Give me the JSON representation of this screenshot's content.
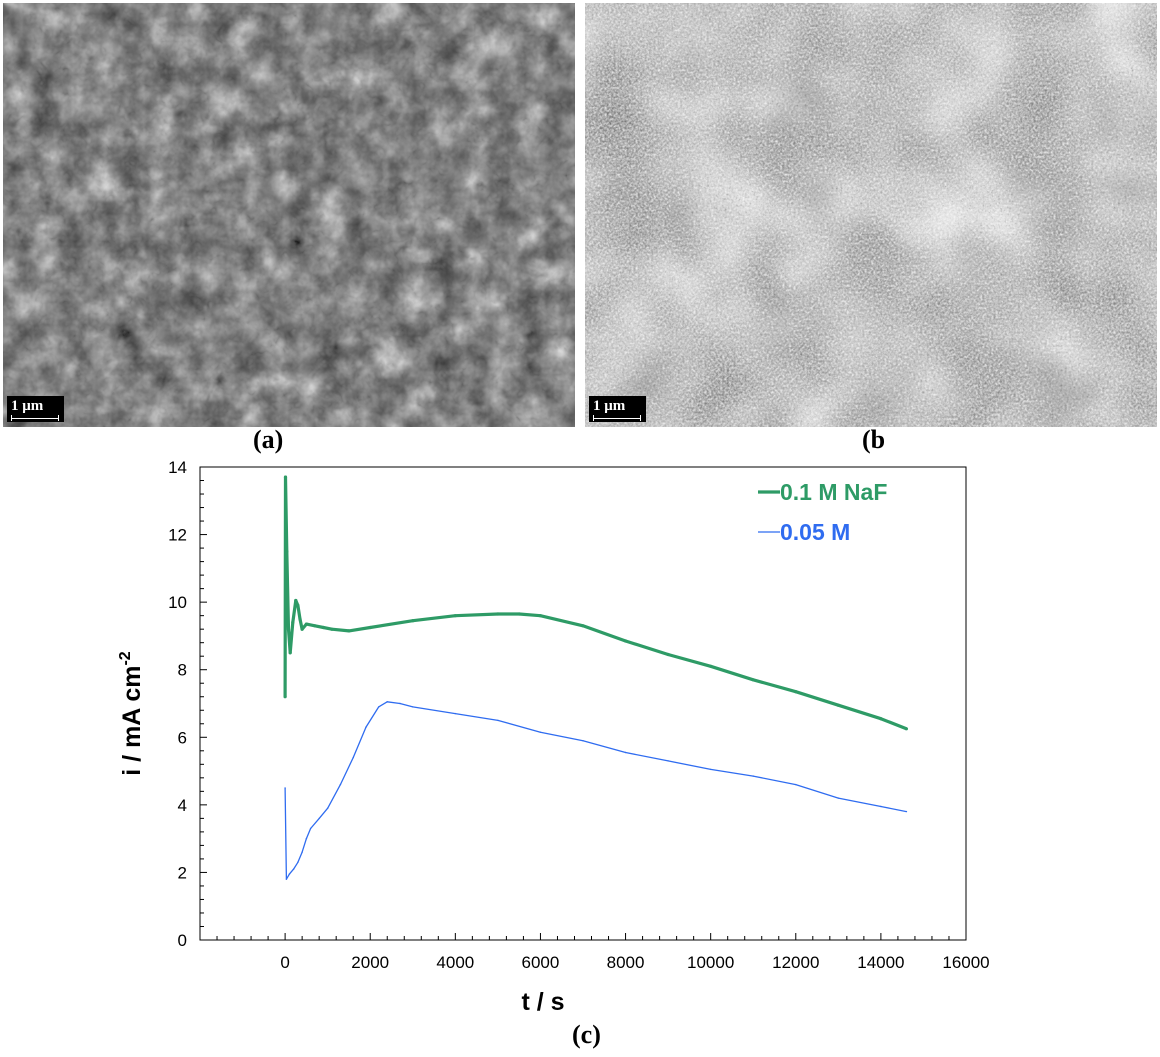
{
  "figure": {
    "panel_a": {
      "label": "(a)",
      "scale_bar": "1 μm"
    },
    "panel_b": {
      "label": "(b",
      "scale_bar": "1 μm"
    },
    "panel_c": {
      "label": "(c)"
    }
  },
  "chart_data": {
    "type": "line",
    "xlabel": "t / s",
    "ylabel": "i / mA cm",
    "ylabel_superscript": "-2",
    "xlim": [
      -2000,
      16000
    ],
    "ylim": [
      0,
      14
    ],
    "x_ticks": [
      0,
      2000,
      4000,
      6000,
      8000,
      10000,
      12000,
      14000,
      16000
    ],
    "y_ticks": [
      0,
      2,
      4,
      6,
      8,
      10,
      12,
      14
    ],
    "legend_position": "top-right",
    "series": [
      {
        "name": "0.1 M NaF",
        "color": "#2e9b66",
        "points": [
          [
            0,
            7.2
          ],
          [
            10,
            13.7
          ],
          [
            40,
            11.5
          ],
          [
            80,
            9.2
          ],
          [
            120,
            8.5
          ],
          [
            180,
            9.4
          ],
          [
            250,
            10.05
          ],
          [
            300,
            9.9
          ],
          [
            350,
            9.5
          ],
          [
            400,
            9.2
          ],
          [
            500,
            9.35
          ],
          [
            700,
            9.3
          ],
          [
            900,
            9.25
          ],
          [
            1100,
            9.2
          ],
          [
            1500,
            9.15
          ],
          [
            2000,
            9.25
          ],
          [
            3000,
            9.45
          ],
          [
            4000,
            9.6
          ],
          [
            5000,
            9.65
          ],
          [
            5500,
            9.65
          ],
          [
            6000,
            9.6
          ],
          [
            7000,
            9.3
          ],
          [
            8000,
            8.85
          ],
          [
            9000,
            8.45
          ],
          [
            10000,
            8.1
          ],
          [
            11000,
            7.7
          ],
          [
            12000,
            7.35
          ],
          [
            13000,
            6.95
          ],
          [
            14000,
            6.55
          ],
          [
            14600,
            6.25
          ]
        ]
      },
      {
        "name": "0.05 M",
        "color": "#2f6cf0",
        "points": [
          [
            0,
            4.5
          ],
          [
            30,
            1.8
          ],
          [
            100,
            1.95
          ],
          [
            200,
            2.1
          ],
          [
            300,
            2.3
          ],
          [
            400,
            2.6
          ],
          [
            500,
            3.0
          ],
          [
            600,
            3.3
          ],
          [
            800,
            3.6
          ],
          [
            1000,
            3.9
          ],
          [
            1300,
            4.6
          ],
          [
            1600,
            5.4
          ],
          [
            1900,
            6.3
          ],
          [
            2200,
            6.9
          ],
          [
            2400,
            7.05
          ],
          [
            2700,
            7.0
          ],
          [
            3000,
            6.9
          ],
          [
            4000,
            6.7
          ],
          [
            5000,
            6.5
          ],
          [
            6000,
            6.15
          ],
          [
            7000,
            5.9
          ],
          [
            8000,
            5.55
          ],
          [
            9000,
            5.3
          ],
          [
            10000,
            5.05
          ],
          [
            11000,
            4.85
          ],
          [
            12000,
            4.6
          ],
          [
            13000,
            4.2
          ],
          [
            14000,
            3.95
          ],
          [
            14600,
            3.8
          ]
        ]
      }
    ]
  }
}
